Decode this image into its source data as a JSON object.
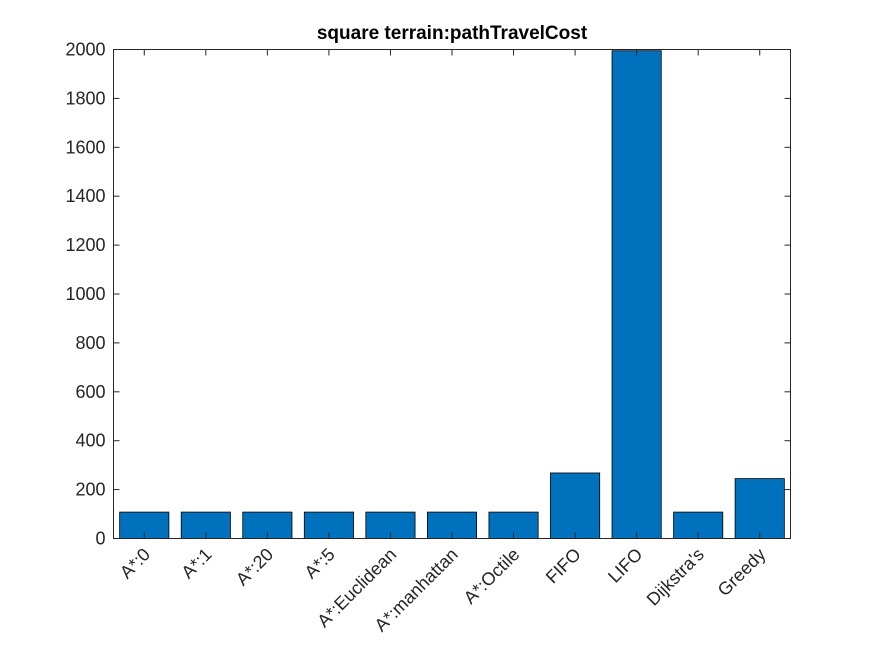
{
  "chart_data": {
    "type": "bar",
    "title": "square terrain:pathTravelCost",
    "xlabel": "",
    "ylabel": "",
    "categories": [
      "A*:0",
      "A*:1",
      "A*:20",
      "A*:5",
      "A*:Euclidean",
      "A*:manhattan",
      "A*:Octile",
      "FIFO",
      "LIFO",
      "Dijkstra's",
      "Greedy"
    ],
    "values": [
      108,
      108,
      108,
      108,
      108,
      108,
      108,
      268,
      1995,
      108,
      245
    ],
    "ylim": [
      0,
      2000
    ],
    "yticks": [
      0,
      200,
      400,
      600,
      800,
      1000,
      1200,
      1400,
      1600,
      1800,
      2000
    ],
    "grid": false,
    "bar_color": "#0072BD"
  }
}
